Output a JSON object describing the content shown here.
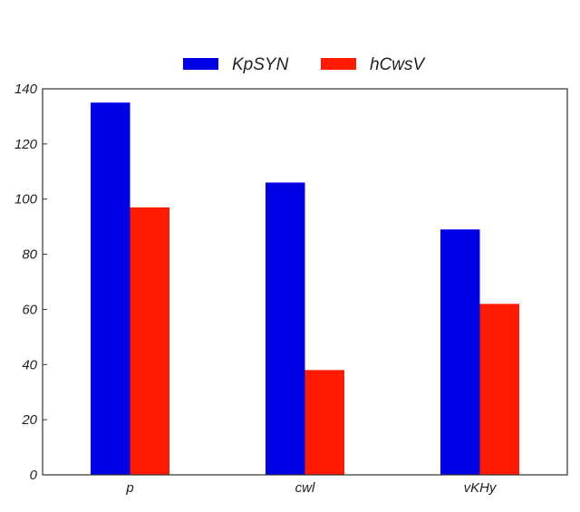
{
  "chart_data": {
    "type": "bar",
    "title": "",
    "xlabel": "",
    "ylabel": "",
    "categories": [
      "p",
      "cwl",
      "vKHy"
    ],
    "series": [
      {
        "name": "KpSYN",
        "color": "#0000e6",
        "values": [
          135,
          106,
          89
        ]
      },
      {
        "name": "hCwsV",
        "color": "#ff1a00",
        "values": [
          97,
          38,
          62
        ]
      }
    ],
    "ylim": [
      0,
      140
    ],
    "yticks": [
      0,
      20,
      40,
      60,
      80,
      100,
      120,
      140
    ],
    "grid": false,
    "legend_placement": "top-center"
  }
}
